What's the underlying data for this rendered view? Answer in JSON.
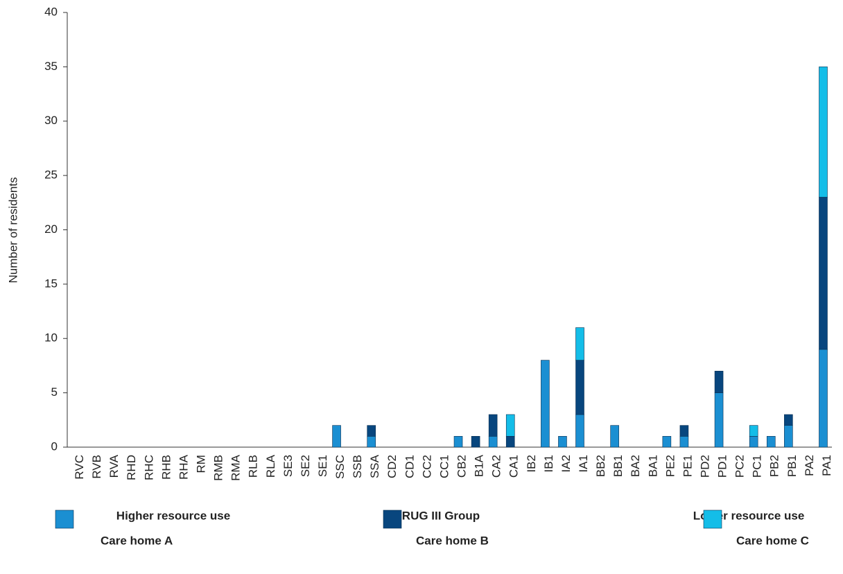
{
  "chart_data": {
    "type": "stacked_bar",
    "ylabel": "Number of residents",
    "group_labels": [
      "Higher resource use",
      "RUG III Group",
      "Lower resource use"
    ],
    "categories": [
      "RVC",
      "RVB",
      "RVA",
      "RHD",
      "RHC",
      "RHB",
      "RHA",
      "RM",
      "RMB",
      "RMA",
      "RLB",
      "RLA",
      "SE3",
      "SE2",
      "SE1",
      "SSC",
      "SSB",
      "SSA",
      "CD2",
      "CD1",
      "CC2",
      "CC1",
      "CB2",
      "B1A",
      "CA2",
      "CA1",
      "IB2",
      "IB1",
      "IA2",
      "IA1",
      "BB2",
      "BB1",
      "BA2",
      "BA1",
      "PE2",
      "PE1",
      "PD2",
      "PD1",
      "PC2",
      "PC1",
      "PB2",
      "PB1",
      "PA2",
      "PA1"
    ],
    "series": [
      {
        "name": "Care home A",
        "color": "#1b8fd2",
        "values": [
          0,
          0,
          0,
          0,
          0,
          0,
          0,
          0,
          0,
          0,
          0,
          0,
          0,
          0,
          0,
          2,
          0,
          1,
          0,
          0,
          0,
          0,
          1,
          0,
          1,
          0,
          0,
          8,
          1,
          3,
          0,
          2,
          0,
          0,
          1,
          1,
          0,
          5,
          0,
          1,
          1,
          2,
          0,
          9
        ]
      },
      {
        "name": "Care home B",
        "color": "#08467e",
        "values": [
          0,
          0,
          0,
          0,
          0,
          0,
          0,
          0,
          0,
          0,
          0,
          0,
          0,
          0,
          0,
          0,
          0,
          1,
          0,
          0,
          0,
          0,
          0,
          1,
          2,
          1,
          0,
          0,
          0,
          5,
          0,
          0,
          0,
          0,
          0,
          1,
          0,
          2,
          0,
          0,
          0,
          1,
          0,
          14
        ]
      },
      {
        "name": "Care home C",
        "color": "#14bde8",
        "values": [
          0,
          0,
          0,
          0,
          0,
          0,
          0,
          0,
          0,
          0,
          0,
          0,
          0,
          0,
          0,
          0,
          0,
          0,
          0,
          0,
          0,
          0,
          0,
          0,
          0,
          2,
          0,
          0,
          0,
          3,
          0,
          0,
          0,
          0,
          0,
          0,
          0,
          0,
          0,
          1,
          0,
          0,
          0,
          12
        ]
      }
    ],
    "ylim": [
      0,
      40
    ],
    "yticks": [
      0,
      5,
      10,
      15,
      20,
      25,
      30,
      35,
      40
    ]
  }
}
